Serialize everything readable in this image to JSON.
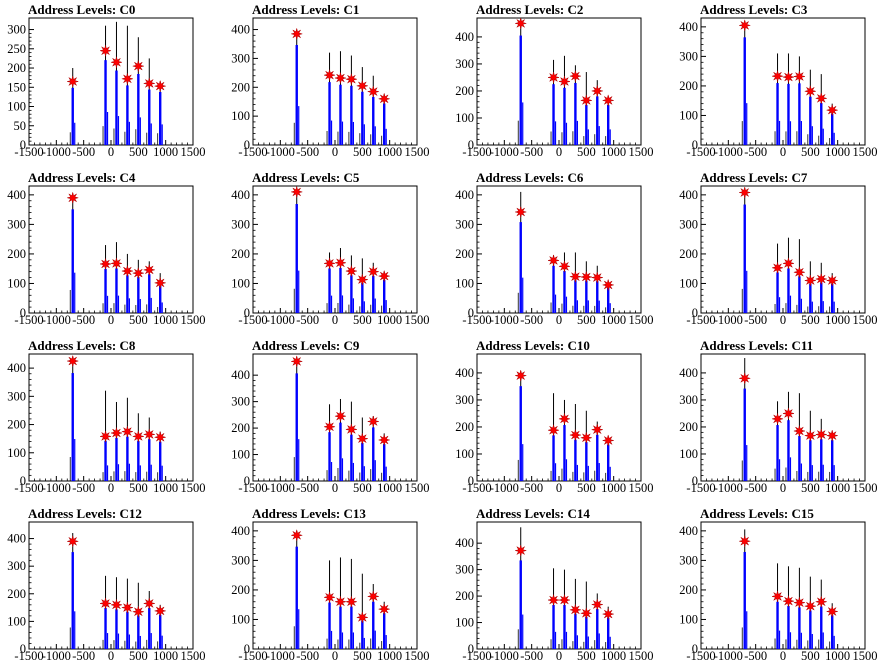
{
  "colors": {
    "histogram": "#0000ff",
    "marker": "#ff0000",
    "axis": "#000000"
  },
  "chart_data": [
    {
      "type": "bar",
      "title": "Address Levels: C0",
      "xlim": [
        -1500,
        1500
      ],
      "ylim": [
        0,
        330
      ],
      "yticks": [
        0,
        50,
        100,
        150,
        200,
        250,
        300
      ],
      "xticks": [
        -1500,
        -1000,
        -500,
        0,
        500,
        1000,
        1500
      ],
      "x": [
        -700,
        -100,
        100,
        300,
        500,
        700,
        900
      ],
      "values": [
        165,
        245,
        215,
        172,
        205,
        160,
        153
      ],
      "peak_tops": [
        200,
        310,
        320,
        310,
        280,
        225,
        165
      ]
    },
    {
      "type": "bar",
      "title": "Address Levels: C1",
      "xlim": [
        -1500,
        1500
      ],
      "ylim": [
        0,
        440
      ],
      "yticks": [
        0,
        100,
        200,
        300,
        400
      ],
      "xticks": [
        -1500,
        -1000,
        -500,
        0,
        500,
        1000,
        1500
      ],
      "x": [
        -700,
        -100,
        100,
        300,
        500,
        700,
        900
      ],
      "values": [
        385,
        242,
        232,
        228,
        205,
        185,
        160
      ],
      "peak_tops": [
        395,
        320,
        325,
        310,
        270,
        240,
        175
      ]
    },
    {
      "type": "bar",
      "title": "Address Levels: C2",
      "xlim": [
        -1500,
        1500
      ],
      "ylim": [
        0,
        470
      ],
      "yticks": [
        0,
        100,
        200,
        300,
        400
      ],
      "xticks": [
        -1500,
        -1000,
        -500,
        0,
        500,
        1000,
        1500
      ],
      "x": [
        -700,
        -100,
        100,
        300,
        500,
        700,
        900
      ],
      "values": [
        450,
        250,
        235,
        255,
        165,
        200,
        165
      ],
      "peak_tops": [
        460,
        315,
        330,
        295,
        270,
        240,
        180
      ]
    },
    {
      "type": "bar",
      "title": "Address Levels: C3",
      "xlim": [
        -1500,
        1500
      ],
      "ylim": [
        0,
        430
      ],
      "yticks": [
        0,
        100,
        200,
        300,
        400
      ],
      "xticks": [
        -1500,
        -1000,
        -500,
        0,
        500,
        1000,
        1500
      ],
      "x": [
        -700,
        -100,
        100,
        300,
        500,
        700,
        900
      ],
      "values": [
        405,
        233,
        230,
        232,
        182,
        158,
        118
      ],
      "peak_tops": [
        415,
        310,
        310,
        300,
        255,
        240,
        140
      ]
    },
    {
      "type": "bar",
      "title": "Address Levels: C4",
      "xlim": [
        -1500,
        1500
      ],
      "ylim": [
        0,
        430
      ],
      "yticks": [
        0,
        100,
        200,
        300,
        400
      ],
      "xticks": [
        -1500,
        -1000,
        -500,
        0,
        500,
        1000,
        1500
      ],
      "x": [
        -700,
        -100,
        100,
        300,
        500,
        700,
        900
      ],
      "values": [
        390,
        166,
        168,
        142,
        135,
        146,
        102
      ],
      "peak_tops": [
        400,
        230,
        240,
        200,
        180,
        175,
        135
      ]
    },
    {
      "type": "bar",
      "title": "Address Levels: C5",
      "xlim": [
        -1500,
        1500
      ],
      "ylim": [
        0,
        430
      ],
      "yticks": [
        0,
        100,
        200,
        300,
        400
      ],
      "xticks": [
        -1500,
        -1000,
        -500,
        0,
        500,
        1000,
        1500
      ],
      "x": [
        -700,
        -100,
        100,
        300,
        500,
        700,
        900
      ],
      "values": [
        410,
        168,
        170,
        142,
        113,
        140,
        125
      ],
      "peak_tops": [
        420,
        205,
        220,
        195,
        185,
        170,
        140
      ]
    },
    {
      "type": "bar",
      "title": "Address Levels: C6",
      "xlim": [
        -1500,
        1500
      ],
      "ylim": [
        0,
        430
      ],
      "yticks": [
        0,
        100,
        200,
        300,
        400
      ],
      "xticks": [
        -1500,
        -1000,
        -500,
        0,
        500,
        1000,
        1500
      ],
      "x": [
        -700,
        -100,
        100,
        300,
        500,
        700,
        900
      ],
      "values": [
        342,
        178,
        158,
        123,
        122,
        120,
        95
      ],
      "peak_tops": [
        410,
        195,
        205,
        205,
        175,
        160,
        110
      ]
    },
    {
      "type": "bar",
      "title": "Address Levels: C7",
      "xlim": [
        -1500,
        1500
      ],
      "ylim": [
        0,
        430
      ],
      "yticks": [
        0,
        100,
        200,
        300,
        400
      ],
      "xticks": [
        -1500,
        -1000,
        -500,
        0,
        500,
        1000,
        1500
      ],
      "x": [
        -700,
        -100,
        100,
        300,
        500,
        700,
        900
      ],
      "values": [
        408,
        153,
        168,
        138,
        110,
        115,
        110
      ],
      "peak_tops": [
        420,
        235,
        255,
        250,
        175,
        170,
        135
      ]
    },
    {
      "type": "bar",
      "title": "Address Levels: C8",
      "xlim": [
        -1500,
        1500
      ],
      "ylim": [
        0,
        450
      ],
      "yticks": [
        0,
        100,
        200,
        300,
        400
      ],
      "xticks": [
        -1500,
        -1000,
        -500,
        0,
        500,
        1000,
        1500
      ],
      "x": [
        -700,
        -100,
        100,
        300,
        500,
        700,
        900
      ],
      "values": [
        425,
        158,
        170,
        175,
        158,
        165,
        155
      ],
      "peak_tops": [
        435,
        320,
        280,
        295,
        240,
        225,
        175
      ]
    },
    {
      "type": "bar",
      "title": "Address Levels: C9",
      "xlim": [
        -1500,
        1500
      ],
      "ylim": [
        0,
        480
      ],
      "yticks": [
        0,
        100,
        200,
        300,
        400
      ],
      "xticks": [
        -1500,
        -1000,
        -500,
        0,
        500,
        1000,
        1500
      ],
      "x": [
        -700,
        -100,
        100,
        300,
        500,
        700,
        900
      ],
      "values": [
        452,
        205,
        245,
        195,
        160,
        225,
        155
      ],
      "peak_tops": [
        460,
        290,
        310,
        300,
        240,
        245,
        180
      ]
    },
    {
      "type": "bar",
      "title": "Address Levels: C10",
      "xlim": [
        -1500,
        1500
      ],
      "ylim": [
        0,
        470
      ],
      "yticks": [
        0,
        100,
        200,
        300,
        400
      ],
      "xticks": [
        -1500,
        -1000,
        -500,
        0,
        500,
        1000,
        1500
      ],
      "x": [
        -700,
        -100,
        100,
        300,
        500,
        700,
        900
      ],
      "values": [
        390,
        188,
        230,
        170,
        160,
        190,
        150
      ],
      "peak_tops": [
        405,
        325,
        300,
        285,
        260,
        220,
        165
      ]
    },
    {
      "type": "bar",
      "title": "Address Levels: C11",
      "xlim": [
        -1500,
        1500
      ],
      "ylim": [
        0,
        470
      ],
      "yticks": [
        0,
        100,
        200,
        300,
        400
      ],
      "xticks": [
        -1500,
        -1000,
        -500,
        0,
        500,
        1000,
        1500
      ],
      "x": [
        -700,
        -100,
        100,
        300,
        500,
        700,
        900
      ],
      "values": [
        380,
        230,
        250,
        185,
        168,
        172,
        168
      ],
      "peak_tops": [
        455,
        295,
        330,
        325,
        260,
        230,
        180
      ]
    },
    {
      "type": "bar",
      "title": "Address Levels: C12",
      "xlim": [
        -1500,
        1500
      ],
      "ylim": [
        0,
        460
      ],
      "yticks": [
        0,
        100,
        200,
        300,
        400
      ],
      "xticks": [
        -1500,
        -1000,
        -500,
        0,
        500,
        1000,
        1500
      ],
      "x": [
        -700,
        -100,
        100,
        300,
        500,
        700,
        900
      ],
      "values": [
        390,
        165,
        160,
        150,
        135,
        165,
        138
      ],
      "peak_tops": [
        420,
        265,
        260,
        255,
        240,
        210,
        160
      ]
    },
    {
      "type": "bar",
      "title": "Address Levels: C13",
      "xlim": [
        -1500,
        1500
      ],
      "ylim": [
        0,
        430
      ],
      "yticks": [
        0,
        100,
        200,
        300,
        400
      ],
      "xticks": [
        -1500,
        -1000,
        -500,
        0,
        500,
        1000,
        1500
      ],
      "x": [
        -700,
        -100,
        100,
        300,
        500,
        700,
        900
      ],
      "values": [
        385,
        175,
        160,
        160,
        107,
        178,
        135
      ],
      "peak_tops": [
        400,
        300,
        310,
        305,
        255,
        220,
        160
      ]
    },
    {
      "type": "bar",
      "title": "Address Levels: C14",
      "xlim": [
        -1500,
        1500
      ],
      "ylim": [
        0,
        480
      ],
      "yticks": [
        0,
        100,
        200,
        300,
        400
      ],
      "xticks": [
        -1500,
        -1000,
        -500,
        0,
        500,
        1000,
        1500
      ],
      "x": [
        -700,
        -100,
        100,
        300,
        500,
        700,
        900
      ],
      "values": [
        372,
        185,
        185,
        148,
        135,
        168,
        132
      ],
      "peak_tops": [
        460,
        305,
        300,
        265,
        255,
        210,
        160
      ]
    },
    {
      "type": "bar",
      "title": "Address Levels: C15",
      "xlim": [
        -1500,
        1500
      ],
      "ylim": [
        0,
        430
      ],
      "yticks": [
        0,
        100,
        200,
        300,
        400
      ],
      "xticks": [
        -1500,
        -1000,
        -500,
        0,
        500,
        1000,
        1500
      ],
      "x": [
        -700,
        -100,
        100,
        300,
        500,
        700,
        900
      ],
      "values": [
        365,
        178,
        162,
        157,
        145,
        160,
        127
      ],
      "peak_tops": [
        405,
        290,
        280,
        275,
        245,
        235,
        155
      ]
    }
  ]
}
